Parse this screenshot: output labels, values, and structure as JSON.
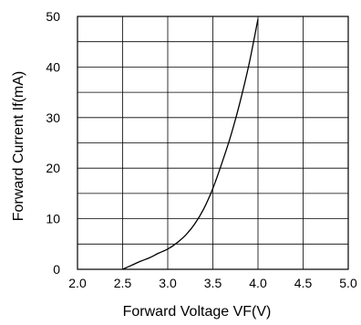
{
  "chart_data": {
    "type": "line",
    "title": "",
    "xlabel": "Forward Voltage VF(V)",
    "ylabel": "Forward Current If(mA)",
    "xlim": [
      2.0,
      5.0
    ],
    "ylim": [
      0,
      50
    ],
    "x_ticks": [
      "2.0",
      "2.5",
      "3.0",
      "3.5",
      "4.0",
      "4.5",
      "5.0"
    ],
    "y_ticks": [
      "0",
      "10",
      "20",
      "30",
      "40",
      "50"
    ],
    "grid": true,
    "x_minor_step": 0.5,
    "y_minor_step": 5,
    "colors": {
      "line": "#000000",
      "grid": "#000000",
      "background": "#ffffff"
    },
    "series": [
      {
        "x": [
          2.5,
          2.6,
          2.7,
          2.8,
          2.9,
          3.0,
          3.1,
          3.2,
          3.3,
          3.4,
          3.5,
          3.6,
          3.7,
          3.8,
          3.9,
          4.0
        ],
        "y": [
          0,
          0.8,
          1.6,
          2.3,
          3.2,
          4.0,
          5.2,
          6.8,
          9.0,
          12.0,
          16.0,
          21.0,
          26.5,
          33.0,
          40.5,
          49.5
        ]
      }
    ]
  }
}
